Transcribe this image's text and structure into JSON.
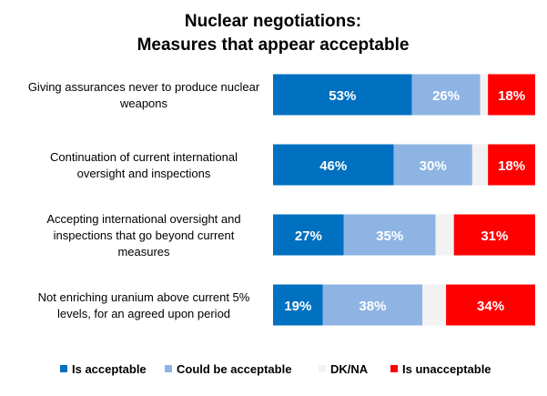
{
  "chart_data": {
    "type": "bar",
    "orientation": "horizontal",
    "stacked": true,
    "title": "Nuclear negotiations:\nMeasures that appear acceptable",
    "title_lines": [
      "Nuclear negotiations:",
      "Measures that appear acceptable"
    ],
    "categories": [
      [
        "Giving assurances never to produce nuclear",
        "weapons"
      ],
      [
        "Continuation of current international",
        "oversight and inspections"
      ],
      [
        "Accepting international oversight and",
        "inspections that go beyond current",
        "measures"
      ],
      [
        "Not enriching uranium above current 5%",
        "levels, for an agreed upon period"
      ]
    ],
    "series": [
      {
        "name": "Is acceptable",
        "color": "#0070c0",
        "values": [
          53,
          46,
          27,
          19
        ],
        "labels": [
          "53%",
          "46%",
          "27%",
          "19%"
        ]
      },
      {
        "name": "Could be acceptable",
        "color": "#8eb4e3",
        "values": [
          26,
          30,
          35,
          38
        ],
        "labels": [
          "26%",
          "30%",
          "35%",
          "38%"
        ]
      },
      {
        "name": "DK/NA",
        "color": "#f2f2f2",
        "values": [
          3,
          6,
          7,
          9
        ],
        "labels": [
          "",
          "",
          "",
          ""
        ]
      },
      {
        "name": "Is unacceptable",
        "color": "#ff0000",
        "values": [
          18,
          18,
          31,
          34
        ],
        "labels": [
          "18%",
          "18%",
          "31%",
          "34%"
        ]
      }
    ],
    "xlim": [
      0,
      100
    ],
    "grid": false,
    "legend_position": "bottom"
  }
}
